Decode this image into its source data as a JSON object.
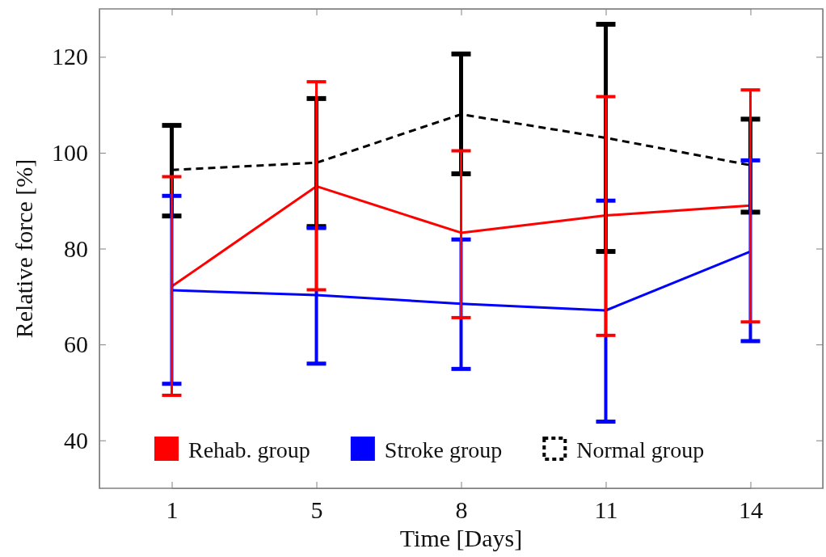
{
  "chart_data": {
    "type": "line",
    "xlabel": "Time [Days]",
    "ylabel": "Relative force [%]",
    "categories": [
      "1",
      "5",
      "8",
      "11",
      "14"
    ],
    "ylim": [
      30,
      130
    ],
    "yticks": [
      40,
      60,
      80,
      100,
      120
    ],
    "legend": "bottom",
    "series": [
      {
        "name": "Rehab. group",
        "color": "#ff0000",
        "line_style": "solid",
        "values": [
          72.1,
          93.0,
          83.3,
          86.9,
          89.0
        ],
        "errors": [
          [
            49.4,
            95.0
          ],
          [
            71.4,
            114.8
          ],
          [
            65.6,
            100.4
          ],
          [
            61.9,
            111.7
          ],
          [
            64.7,
            113.1
          ]
        ]
      },
      {
        "name": "Stroke group",
        "color": "#0000ff",
        "line_style": "solid",
        "values": [
          71.3,
          70.3,
          68.5,
          67.1,
          79.4
        ],
        "errors": [
          [
            51.8,
            91.0
          ],
          [
            56.0,
            84.3
          ],
          [
            54.9,
            81.9
          ],
          [
            43.9,
            90.0
          ],
          [
            60.7,
            98.4
          ]
        ]
      },
      {
        "name": "Normal group",
        "color": "#000000",
        "line_style": "dashed",
        "values": [
          96.4,
          97.9,
          108.0,
          103.1,
          97.4
        ],
        "errors": [
          [
            86.8,
            105.7
          ],
          [
            84.6,
            111.3
          ],
          [
            95.6,
            120.6
          ],
          [
            79.4,
            126.8
          ],
          [
            87.6,
            107.0
          ]
        ]
      }
    ]
  }
}
